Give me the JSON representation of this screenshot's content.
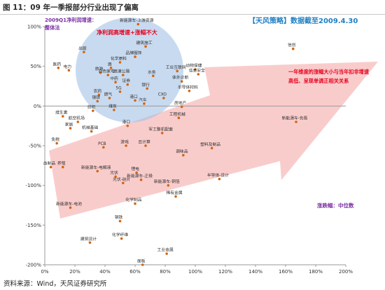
{
  "header": {
    "title": "图 11：09 年一季报部分行业出现了偏离"
  },
  "footer": {
    "source": "资料来源：Wind，天风证券研究所"
  },
  "chart_data": {
    "type": "scatter",
    "xlim": [
      0,
      2
    ],
    "ylim": [
      -2,
      1
    ],
    "x_ticks": [
      "0%",
      "20%",
      "40%",
      "60%",
      "80%",
      "100%",
      "120%",
      "140%",
      "160%",
      "180%",
      "200%"
    ],
    "y_ticks": [
      "100%",
      "50%",
      "0%",
      "-50%",
      "-100%",
      "-150%",
      "-200%"
    ],
    "grid": false,
    "colors": {
      "point": "#d4660f",
      "axis": "#9a9a9a",
      "ellipse": "#a3c1e6",
      "arrow": "#f6b8b8",
      "accent_red": "#e8001c",
      "accent_blue": "#1f7fc4",
      "note_purple": "#7a2ea3"
    },
    "points": [
      {
        "label": "信创",
        "x": 1.65,
        "y": 0.72
      },
      {
        "label": "新能源车-上游资源",
        "x": 0.62,
        "y": 1.03
      },
      {
        "label": "建筑施工",
        "x": 0.67,
        "y": 0.75
      },
      {
        "label": "品牌服饰",
        "x": 0.6,
        "y": 0.62
      },
      {
        "label": "出版",
        "x": 0.26,
        "y": 0.68
      },
      {
        "label": "化学原料",
        "x": 0.5,
        "y": 0.55
      },
      {
        "label": "酒",
        "x": 0.44,
        "y": 0.48
      },
      {
        "label": "医药",
        "x": 0.09,
        "y": 0.48
      },
      {
        "label": "电力",
        "x": 0.16,
        "y": 0.45
      },
      {
        "label": "旅游",
        "x": 0.37,
        "y": 0.42
      },
      {
        "label": "白色家电",
        "x": 0.42,
        "y": 0.39
      },
      {
        "label": "高速公路",
        "x": 0.52,
        "y": 0.39
      },
      {
        "label": "工业互联网",
        "x": 0.88,
        "y": 0.44
      },
      {
        "label": "动物保健",
        "x": 1.0,
        "y": 0.46
      },
      {
        "label": "信息安全",
        "x": 1.02,
        "y": 0.4
      },
      {
        "label": "水务",
        "x": 0.72,
        "y": 0.38
      },
      {
        "label": "体外诊断",
        "x": 0.91,
        "y": 0.31
      },
      {
        "label": "半导体材料",
        "x": 0.96,
        "y": 0.19
      },
      {
        "label": "中药",
        "x": 0.47,
        "y": 0.3
      },
      {
        "label": "证券",
        "x": 0.55,
        "y": 0.27
      },
      {
        "label": "银行",
        "x": 0.68,
        "y": 0.22
      },
      {
        "label": "5G",
        "x": 0.5,
        "y": 0.18
      },
      {
        "label": "农药",
        "x": 0.36,
        "y": 0.14
      },
      {
        "label": "燃气",
        "x": 0.43,
        "y": 0.1
      },
      {
        "label": "CXO",
        "x": 0.79,
        "y": 0.1
      },
      {
        "label": "港口",
        "x": 0.6,
        "y": 0.07
      },
      {
        "label": "钢铁",
        "x": 0.35,
        "y": 0.06
      },
      {
        "label": "汽车",
        "x": 0.66,
        "y": 0.03
      },
      {
        "label": "房地产",
        "x": 0.91,
        "y": -0.01
      },
      {
        "label": "纺织",
        "x": 0.32,
        "y": -0.06
      },
      {
        "label": "煤炭",
        "x": 0.46,
        "y": -0.05
      },
      {
        "label": "工程机械",
        "x": 0.89,
        "y": -0.15
      },
      {
        "label": "维生素",
        "x": 0.12,
        "y": -0.13
      },
      {
        "label": "航空机场",
        "x": 0.22,
        "y": -0.2
      },
      {
        "label": "港口(2)",
        "x": 0.55,
        "y": -0.25
      },
      {
        "label": "新能源车-负极",
        "x": 1.67,
        "y": -0.2
      },
      {
        "label": "家居",
        "x": 0.17,
        "y": -0.28
      },
      {
        "label": "机械基础",
        "x": 0.31,
        "y": -0.32
      },
      {
        "label": "军工整机配套",
        "x": 0.78,
        "y": -0.34
      },
      {
        "label": "免税",
        "x": 0.08,
        "y": -0.47
      },
      {
        "label": "PCB",
        "x": 0.39,
        "y": -0.52
      },
      {
        "label": "游戏",
        "x": 0.54,
        "y": -0.5
      },
      {
        "label": "云计算",
        "x": 0.67,
        "y": -0.5
      },
      {
        "label": "塑料及制品",
        "x": 1.11,
        "y": -0.53
      },
      {
        "label": "调味品",
        "x": 0.92,
        "y": -0.62
      },
      {
        "label": "血制品",
        "x": 0.04,
        "y": -0.77
      },
      {
        "label": "养殖",
        "x": 0.12,
        "y": -0.77
      },
      {
        "label": "新能源车-电解液",
        "x": 0.35,
        "y": -0.82
      },
      {
        "label": "光伏",
        "x": 0.47,
        "y": -0.89
      },
      {
        "label": "锂电",
        "x": 0.61,
        "y": -0.84
      },
      {
        "label": "新能源车-正极",
        "x": 0.64,
        "y": -0.93
      },
      {
        "label": "光伏-硅片",
        "x": 0.52,
        "y": -0.97
      },
      {
        "label": "半导体-设计",
        "x": 1.16,
        "y": -0.92
      },
      {
        "label": "新能源车-铜箔",
        "x": 0.82,
        "y": -1.0
      },
      {
        "label": "稀有金属",
        "x": 0.87,
        "y": -1.14
      },
      {
        "label": "新能源车-电池",
        "x": 0.17,
        "y": -1.28
      },
      {
        "label": "化学制品",
        "x": 0.6,
        "y": -1.23
      },
      {
        "label": "钢铁(2)",
        "x": 0.5,
        "y": -1.45
      },
      {
        "label": "化学纤维",
        "x": 0.51,
        "y": -1.67
      },
      {
        "label": "建筑设计",
        "x": 0.3,
        "y": -1.72
      },
      {
        "label": "工业金属",
        "x": 0.81,
        "y": -1.86
      },
      {
        "label": "面板",
        "x": 0.65,
        "y": -2.0
      }
    ],
    "annotations": {
      "quadrant_note": "2009Q1净利润增速：整体法",
      "ellipse_label": "净利润高增速+涨幅不大",
      "strategy_tag": "【天风策略】数据截至2009.4.30",
      "deviation_note": "一年维度的涨幅大小与当年扣非增速高低、呈现单调正相关关系",
      "median_note": "涨跌幅：中位数"
    }
  }
}
